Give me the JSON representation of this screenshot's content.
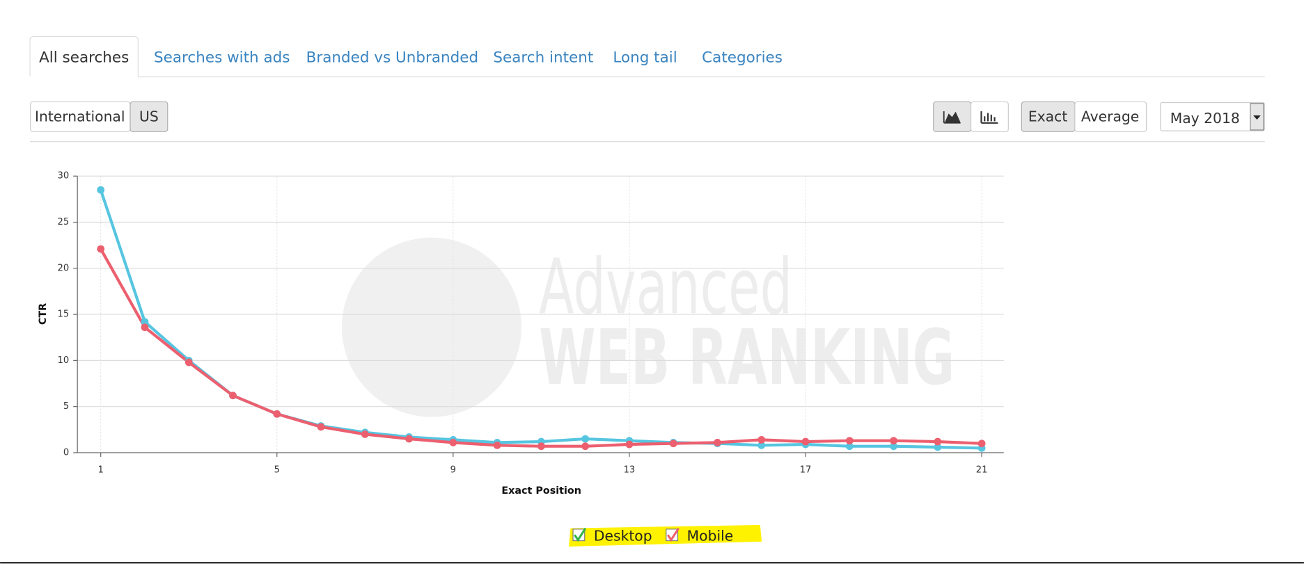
{
  "tabs": [
    "All searches",
    "Searches with ads",
    "Branded vs Unbranded",
    "Search intent",
    "Long tail",
    "Categories"
  ],
  "region_buttons": [
    "International",
    "US"
  ],
  "mode_buttons": [
    "Exact",
    "Average"
  ],
  "date_select": "May 2018",
  "watermark": [
    "Advanced",
    "WEB RANKING"
  ],
  "chart_data": {
    "type": "line",
    "xlabel": "Exact Position",
    "ylabel": "CTR",
    "x": [
      1,
      2,
      3,
      4,
      5,
      6,
      7,
      8,
      9,
      10,
      11,
      12,
      13,
      14,
      15,
      16,
      17,
      18,
      19,
      20,
      21
    ],
    "series": [
      {
        "name": "Desktop",
        "color": "#56c5e0",
        "values": [
          28.5,
          14.2,
          10.0,
          6.2,
          4.2,
          2.9,
          2.2,
          1.7,
          1.4,
          1.1,
          1.2,
          1.5,
          1.3,
          1.1,
          1.0,
          0.8,
          0.9,
          0.7,
          0.7,
          0.6,
          0.5
        ]
      },
      {
        "name": "Mobile",
        "color": "#ec5f6f",
        "values": [
          22.1,
          13.6,
          9.8,
          6.2,
          4.2,
          2.8,
          2.0,
          1.5,
          1.1,
          0.8,
          0.7,
          0.7,
          0.9,
          1.0,
          1.1,
          1.4,
          1.2,
          1.3,
          1.3,
          1.2,
          1.0
        ]
      }
    ],
    "xlim": [
      0.47,
      21.5
    ],
    "ylim": [
      0,
      30
    ],
    "xticks": [
      1,
      5,
      9,
      13,
      17,
      21
    ],
    "yticks": [
      0,
      5,
      10,
      15,
      20,
      25,
      30
    ],
    "grid": true
  }
}
